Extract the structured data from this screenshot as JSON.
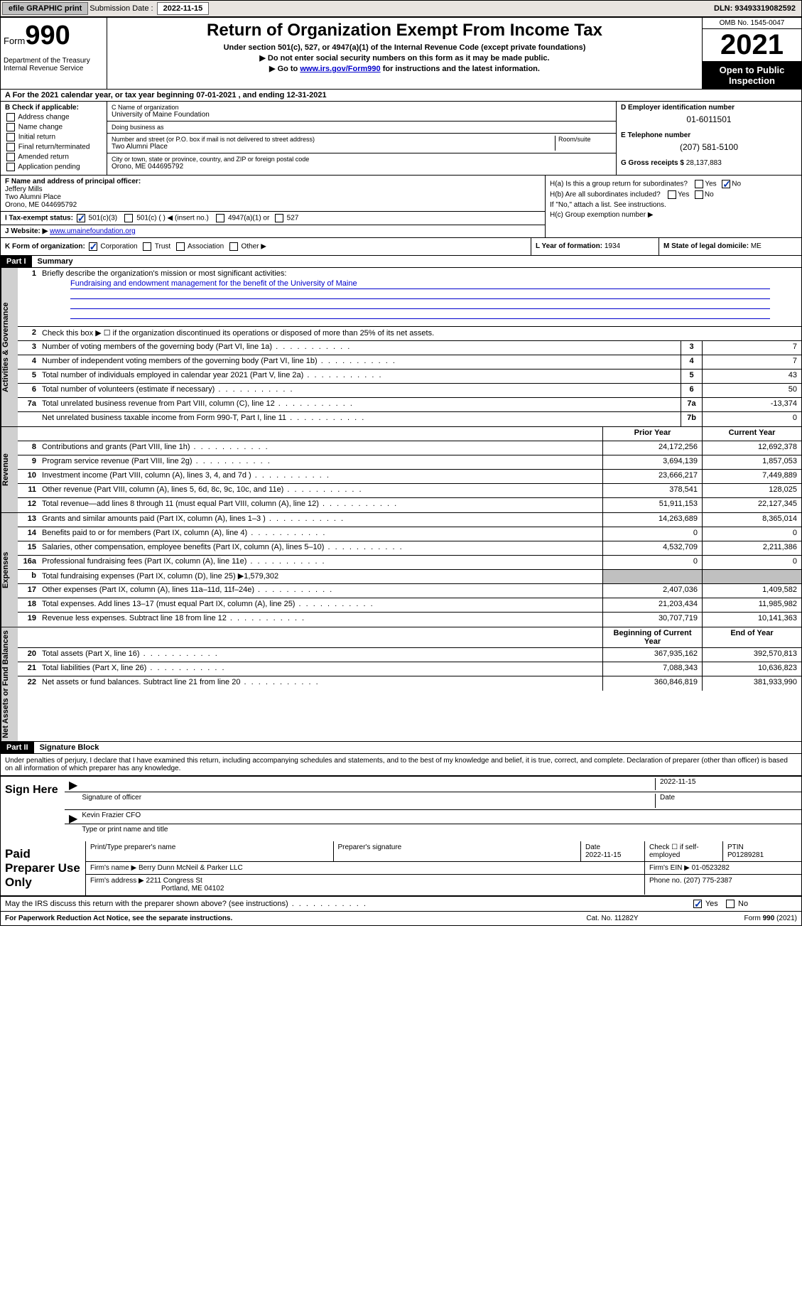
{
  "topbar": {
    "efile": "efile GRAPHIC print",
    "sub_label": "Submission Date : ",
    "sub_date": "2022-11-15",
    "dln": "DLN: 93493319082592"
  },
  "header": {
    "form_label": "Form",
    "form_number": "990",
    "title": "Return of Organization Exempt From Income Tax",
    "sub1": "Under section 501(c), 527, or 4947(a)(1) of the Internal Revenue Code (except private foundations)",
    "sub2": "▶ Do not enter social security numbers on this form as it may be made public.",
    "sub3_pre": "▶ Go to ",
    "sub3_link": "www.irs.gov/Form990",
    "sub3_post": " for instructions and the latest information.",
    "dept": "Department of the Treasury\nInternal Revenue Service",
    "omb": "OMB No. 1545-0047",
    "year": "2021",
    "open_public": "Open to Public Inspection"
  },
  "row_a": "A For the 2021 calendar year, or tax year beginning 07-01-2021   , and ending 12-31-2021",
  "section_b": {
    "label": "B Check if applicable:",
    "items": [
      "Address change",
      "Name change",
      "Initial return",
      "Final return/terminated",
      "Amended return",
      "Application pending"
    ]
  },
  "section_c": {
    "name_label": "C Name of organization",
    "name": "University of Maine Foundation",
    "dba_label": "Doing business as",
    "dba": "",
    "addr_label": "Number and street (or P.O. box if mail is not delivered to street address)",
    "room_label": "Room/suite",
    "addr": "Two Alumni Place",
    "city_label": "City or town, state or province, country, and ZIP or foreign postal code",
    "city": "Orono, ME  044695792"
  },
  "section_d": {
    "ein_label": "D Employer identification number",
    "ein": "01-6011501",
    "tel_label": "E Telephone number",
    "tel": "(207) 581-5100",
    "gross_label": "G Gross receipts $",
    "gross": "28,137,883"
  },
  "section_f": {
    "label": "F Name and address of principal officer:",
    "name": "Jeffery Mills",
    "addr1": "Two Alumni Place",
    "addr2": "Orono, ME  044695792"
  },
  "section_h": {
    "ha": "H(a)  Is this a group return for subordinates?",
    "ha_yes": "Yes",
    "ha_no": "No",
    "hb": "H(b)  Are all subordinates included?",
    "hb_note": "If \"No,\" attach a list. See instructions.",
    "hc": "H(c)  Group exemption number ▶"
  },
  "section_i": {
    "label": "I   Tax-exempt status:",
    "opt1": "501(c)(3)",
    "opt2": "501(c) (   ) ◀ (insert no.)",
    "opt3": "4947(a)(1) or",
    "opt4": "527"
  },
  "section_j": {
    "label": "J   Website: ▶",
    "url": "www.umainefoundation.org"
  },
  "section_k": {
    "label": "K Form of organization:",
    "opts": [
      "Corporation",
      "Trust",
      "Association",
      "Other ▶"
    ]
  },
  "section_l": {
    "label": "L Year of formation:",
    "val": "1934"
  },
  "section_m": {
    "label": "M State of legal domicile:",
    "val": "ME"
  },
  "part1": {
    "header": "Part I",
    "title": "Summary",
    "tab_gov": "Activities & Governance",
    "tab_rev": "Revenue",
    "tab_exp": "Expenses",
    "tab_net": "Net Assets or Fund Balances",
    "q1": "Briefly describe the organization's mission or most significant activities:",
    "mission": "Fundraising and endowment management for the benefit of the University of Maine",
    "q2": "Check this box ▶ ☐  if the organization discontinued its operations or disposed of more than 25% of its net assets.",
    "lines_gov": [
      {
        "n": "3",
        "d": "Number of voting members of the governing body (Part VI, line 1a)",
        "box": "3",
        "v": "7"
      },
      {
        "n": "4",
        "d": "Number of independent voting members of the governing body (Part VI, line 1b)",
        "box": "4",
        "v": "7"
      },
      {
        "n": "5",
        "d": "Total number of individuals employed in calendar year 2021 (Part V, line 2a)",
        "box": "5",
        "v": "43"
      },
      {
        "n": "6",
        "d": "Total number of volunteers (estimate if necessary)",
        "box": "6",
        "v": "50"
      },
      {
        "n": "7a",
        "d": "Total unrelated business revenue from Part VIII, column (C), line 12",
        "box": "7a",
        "v": "-13,374"
      },
      {
        "n": "",
        "d": "Net unrelated business taxable income from Form 990-T, Part I, line 11",
        "box": "7b",
        "v": "0"
      }
    ],
    "head_prior": "Prior Year",
    "head_curr": "Current Year",
    "lines_rev": [
      {
        "n": "8",
        "d": "Contributions and grants (Part VIII, line 1h)",
        "p": "24,172,256",
        "c": "12,692,378"
      },
      {
        "n": "9",
        "d": "Program service revenue (Part VIII, line 2g)",
        "p": "3,694,139",
        "c": "1,857,053"
      },
      {
        "n": "10",
        "d": "Investment income (Part VIII, column (A), lines 3, 4, and 7d )",
        "p": "23,666,217",
        "c": "7,449,889"
      },
      {
        "n": "11",
        "d": "Other revenue (Part VIII, column (A), lines 5, 6d, 8c, 9c, 10c, and 11e)",
        "p": "378,541",
        "c": "128,025"
      },
      {
        "n": "12",
        "d": "Total revenue—add lines 8 through 11 (must equal Part VIII, column (A), line 12)",
        "p": "51,911,153",
        "c": "22,127,345"
      }
    ],
    "lines_exp": [
      {
        "n": "13",
        "d": "Grants and similar amounts paid (Part IX, column (A), lines 1–3 )",
        "p": "14,263,689",
        "c": "8,365,014"
      },
      {
        "n": "14",
        "d": "Benefits paid to or for members (Part IX, column (A), line 4)",
        "p": "0",
        "c": "0"
      },
      {
        "n": "15",
        "d": "Salaries, other compensation, employee benefits (Part IX, column (A), lines 5–10)",
        "p": "4,532,709",
        "c": "2,211,386"
      },
      {
        "n": "16a",
        "d": "Professional fundraising fees (Part IX, column (A), line 11e)",
        "p": "0",
        "c": "0"
      },
      {
        "n": "b",
        "d": "Total fundraising expenses (Part IX, column (D), line 25) ▶1,579,302",
        "p": "",
        "c": "",
        "shade": true
      },
      {
        "n": "17",
        "d": "Other expenses (Part IX, column (A), lines 11a–11d, 11f–24e)",
        "p": "2,407,036",
        "c": "1,409,582"
      },
      {
        "n": "18",
        "d": "Total expenses. Add lines 13–17 (must equal Part IX, column (A), line 25)",
        "p": "21,203,434",
        "c": "11,985,982"
      },
      {
        "n": "19",
        "d": "Revenue less expenses. Subtract line 18 from line 12",
        "p": "30,707,719",
        "c": "10,141,363"
      }
    ],
    "head_begin": "Beginning of Current Year",
    "head_end": "End of Year",
    "lines_net": [
      {
        "n": "20",
        "d": "Total assets (Part X, line 16)",
        "p": "367,935,162",
        "c": "392,570,813"
      },
      {
        "n": "21",
        "d": "Total liabilities (Part X, line 26)",
        "p": "7,088,343",
        "c": "10,636,823"
      },
      {
        "n": "22",
        "d": "Net assets or fund balances. Subtract line 21 from line 20",
        "p": "360,846,819",
        "c": "381,933,990"
      }
    ]
  },
  "part2": {
    "header": "Part II",
    "title": "Signature Block",
    "penalties": "Under penalties of perjury, I declare that I have examined this return, including accompanying schedules and statements, and to the best of my knowledge and belief, it is true, correct, and complete. Declaration of preparer (other than officer) is based on all information of which preparer has any knowledge.",
    "sign_here": "Sign Here",
    "sig_officer": "Signature of officer",
    "sig_date_label": "Date",
    "sig_date": "2022-11-15",
    "officer_name": "Kevin Frazier  CFO",
    "type_name": "Type or print name and title",
    "paid": "Paid Preparer Use Only",
    "prep_name_label": "Print/Type preparer's name",
    "prep_sig_label": "Preparer's signature",
    "prep_date_label": "Date",
    "prep_date": "2022-11-15",
    "check_self": "Check ☐ if self-employed",
    "ptin_label": "PTIN",
    "ptin": "P01289281",
    "firm_name_label": "Firm's name    ▶",
    "firm_name": "Berry Dunn McNeil & Parker LLC",
    "firm_ein_label": "Firm's EIN ▶",
    "firm_ein": "01-0523282",
    "firm_addr_label": "Firm's address ▶",
    "firm_addr1": "2211 Congress St",
    "firm_addr2": "Portland, ME  04102",
    "firm_phone_label": "Phone no.",
    "firm_phone": "(207) 775-2387",
    "may_irs": "May the IRS discuss this return with the preparer shown above? (see instructions)",
    "yes": "Yes",
    "no": "No"
  },
  "footer": {
    "left": "For Paperwork Reduction Act Notice, see the separate instructions.",
    "mid": "Cat. No. 11282Y",
    "right": "Form 990 (2021)"
  }
}
